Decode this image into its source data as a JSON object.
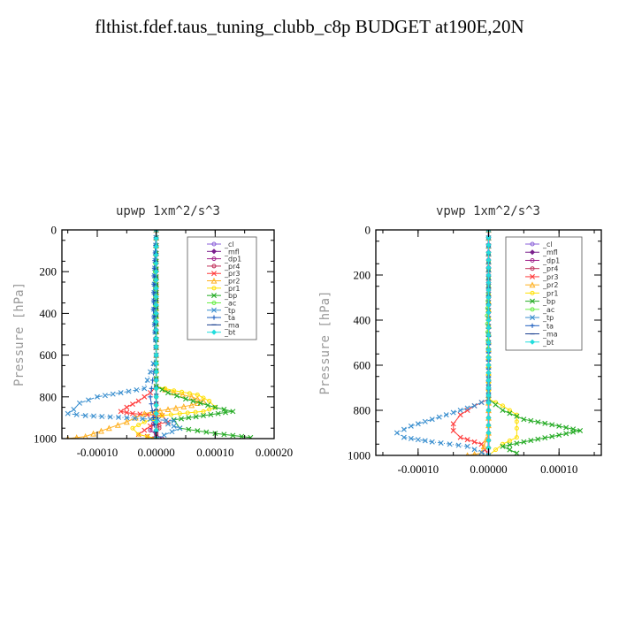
{
  "title": "flthist.fdef.taus_tuning_clubb_c8p  BUDGET at190E,20N",
  "legend": [
    {
      "name": "_cl",
      "color": "#8a5fd8",
      "marker": "circle"
    },
    {
      "name": "_mfl",
      "color": "#7a1f8c",
      "marker": "diamond"
    },
    {
      "name": "_dp1",
      "color": "#a0208a",
      "marker": "circle"
    },
    {
      "name": "_pr4",
      "color": "#c0305a",
      "marker": "circle"
    },
    {
      "name": "_pr3",
      "color": "#ff3b3b",
      "marker": "x"
    },
    {
      "name": "_pr2",
      "color": "#ffb020",
      "marker": "triangle"
    },
    {
      "name": "_pr1",
      "color": "#ffe000",
      "marker": "circle"
    },
    {
      "name": "_bp",
      "color": "#22aa22",
      "marker": "x"
    },
    {
      "name": "_ac",
      "color": "#66ee44",
      "marker": "circle"
    },
    {
      "name": "_tp",
      "color": "#3a8fcf",
      "marker": "x"
    },
    {
      "name": "_ta",
      "color": "#2060c0",
      "marker": "plus"
    },
    {
      "name": "_ma",
      "color": "#1a3f8f",
      "marker": "dash"
    },
    {
      "name": "_bt",
      "color": "#22dddd",
      "marker": "diamond"
    }
  ],
  "chart_data": [
    {
      "type": "line",
      "title": "upwp  1xm^2/s^3",
      "xlabel": "",
      "ylabel": "Pressure [hPa]",
      "xlim": [
        -0.00016,
        0.0002
      ],
      "ylim": [
        1000,
        0
      ],
      "xticks": [
        -0.0001,
        0.0,
        0.0001,
        0.0002
      ],
      "xticklabels": [
        "-0.00010",
        "0.00000",
        "0.00010",
        "0.00020"
      ],
      "yticks": [
        0,
        200,
        400,
        600,
        800,
        1000
      ],
      "yticklabels": [
        "0",
        "200",
        "400",
        "600",
        "800",
        "1000"
      ],
      "legend_position": "top-right",
      "series": [
        {
          "name": "_cl",
          "points": [
            [
              0,
              0
            ],
            [
              0,
              200
            ],
            [
              0,
              400
            ],
            [
              0,
              600
            ],
            [
              0,
              800
            ],
            [
              0,
              1000
            ]
          ]
        },
        {
          "name": "_mfl",
          "points": [
            [
              0,
              0
            ],
            [
              0,
              200
            ],
            [
              0,
              400
            ],
            [
              0,
              600
            ],
            [
              0,
              800
            ],
            [
              0,
              1000
            ]
          ]
        },
        {
          "name": "_dp1",
          "points": [
            [
              0,
              0
            ],
            [
              0,
              200
            ],
            [
              0,
              400
            ],
            [
              0,
              600
            ],
            [
              0,
              800
            ],
            [
              0,
              900
            ],
            [
              -1e-05,
              960
            ],
            [
              1e-05,
              1000
            ]
          ]
        },
        {
          "name": "_pr4",
          "points": [
            [
              0,
              0
            ],
            [
              0,
              600
            ],
            [
              0,
              800
            ],
            [
              0,
              900
            ],
            [
              5e-06,
              950
            ],
            [
              -5e-06,
              1000
            ]
          ]
        },
        {
          "name": "_pr3",
          "points": [
            [
              0,
              0
            ],
            [
              0,
              750
            ],
            [
              -1e-05,
              780
            ],
            [
              -3e-05,
              820
            ],
            [
              -5e-05,
              850
            ],
            [
              -6e-05,
              870
            ],
            [
              -4e-05,
              880
            ],
            [
              1e-05,
              890
            ],
            [
              2e-05,
              920
            ],
            [
              -1e-05,
              940
            ],
            [
              -3e-05,
              980
            ],
            [
              0,
              1000
            ]
          ]
        },
        {
          "name": "_pr2",
          "points": [
            [
              0,
              0
            ],
            [
              0,
              750
            ],
            [
              3e-05,
              780
            ],
            [
              6e-05,
              800
            ],
            [
              8e-05,
              820
            ],
            [
              6e-05,
              840
            ],
            [
              2e-05,
              860
            ],
            [
              -2e-05,
              880
            ],
            [
              -5e-05,
              920
            ],
            [
              -8e-05,
              950
            ],
            [
              -0.00012,
              990
            ],
            [
              -0.00015,
              1000
            ]
          ]
        },
        {
          "name": "_pr1",
          "points": [
            [
              0,
              0
            ],
            [
              0,
              750
            ],
            [
              3e-05,
              770
            ],
            [
              7e-05,
              790
            ],
            [
              9e-05,
              820
            ],
            [
              0.0001,
              850
            ],
            [
              8e-05,
              870
            ],
            [
              4e-05,
              880
            ],
            [
              1e-05,
              890
            ],
            [
              -2e-05,
              920
            ],
            [
              -4e-05,
              950
            ],
            [
              -3e-05,
              980
            ],
            [
              0,
              1000
            ]
          ]
        },
        {
          "name": "_bp",
          "points": [
            [
              0,
              0
            ],
            [
              0,
              750
            ],
            [
              2e-05,
              780
            ],
            [
              5e-05,
              810
            ],
            [
              0.0001,
              850
            ],
            [
              0.00013,
              870
            ],
            [
              8e-05,
              890
            ],
            [
              3e-05,
              910
            ],
            [
              4e-05,
              950
            ],
            [
              0.0001,
              975
            ],
            [
              0.00016,
              995
            ]
          ]
        },
        {
          "name": "_ac",
          "points": [
            [
              0,
              0
            ],
            [
              -2e-06,
              200
            ],
            [
              -2e-06,
              400
            ],
            [
              0,
              600
            ],
            [
              0,
              800
            ],
            [
              0,
              1000
            ]
          ]
        },
        {
          "name": "_tp",
          "points": [
            [
              0,
              0
            ],
            [
              -3e-06,
              220
            ],
            [
              -4e-06,
              380
            ],
            [
              0,
              600
            ],
            [
              -2e-05,
              760
            ],
            [
              -6e-05,
              780
            ],
            [
              -0.0001,
              800
            ],
            [
              -0.00013,
              830
            ],
            [
              -0.00014,
              860
            ],
            [
              -0.00015,
              880
            ],
            [
              -0.00012,
              890
            ],
            [
              -5e-05,
              900
            ],
            [
              3e-05,
              915
            ],
            [
              2e-05,
              930
            ],
            [
              4e-05,
              950
            ],
            [
              0,
              1000
            ]
          ]
        },
        {
          "name": "_ta",
          "points": [
            [
              0,
              0
            ],
            [
              -4e-06,
              220
            ],
            [
              -5e-06,
              380
            ],
            [
              0,
              600
            ],
            [
              -1e-05,
              800
            ],
            [
              -5e-06,
              900
            ],
            [
              0,
              1000
            ]
          ]
        },
        {
          "name": "_ma",
          "points": [
            [
              0,
              0
            ],
            [
              0,
              300
            ],
            [
              0,
              600
            ],
            [
              0,
              900
            ],
            [
              0,
              1000
            ]
          ]
        },
        {
          "name": "_bt",
          "points": [
            [
              0,
              0
            ],
            [
              0,
              200
            ],
            [
              0,
              400
            ],
            [
              0,
              600
            ],
            [
              0,
              800
            ],
            [
              0,
              1000
            ]
          ]
        }
      ]
    },
    {
      "type": "line",
      "title": "vpwp  1xm^2/s^3",
      "xlabel": "",
      "ylabel": "Pressure [hPa]",
      "xlim": [
        -0.00016,
        0.00016
      ],
      "ylim": [
        1000,
        0
      ],
      "xticks": [
        -0.0001,
        0.0,
        0.0001
      ],
      "xticklabels": [
        "-0.00010",
        "0.00000",
        "0.00010"
      ],
      "yticks": [
        0,
        200,
        400,
        600,
        800,
        1000
      ],
      "yticklabels": [
        "0",
        "200",
        "400",
        "600",
        "800",
        "1000"
      ],
      "legend_position": "top-right",
      "series": [
        {
          "name": "_cl",
          "points": [
            [
              0,
              0
            ],
            [
              0,
              200
            ],
            [
              0,
              400
            ],
            [
              0,
              600
            ],
            [
              0,
              800
            ],
            [
              0,
              1000
            ]
          ]
        },
        {
          "name": "_mfl",
          "points": [
            [
              0,
              0
            ],
            [
              0,
              200
            ],
            [
              0,
              400
            ],
            [
              0,
              600
            ],
            [
              0,
              800
            ],
            [
              0,
              1000
            ]
          ]
        },
        {
          "name": "_dp1",
          "points": [
            [
              0,
              0
            ],
            [
              0,
              200
            ],
            [
              0,
              400
            ],
            [
              0,
              600
            ],
            [
              0,
              800
            ],
            [
              0,
              1000
            ]
          ]
        },
        {
          "name": "_pr4",
          "points": [
            [
              0,
              0
            ],
            [
              0,
              600
            ],
            [
              0,
              900
            ],
            [
              0,
              1000
            ]
          ]
        },
        {
          "name": "_pr3",
          "points": [
            [
              0,
              0
            ],
            [
              0,
              750
            ],
            [
              -2e-05,
              780
            ],
            [
              -4e-05,
              820
            ],
            [
              -5e-05,
              860
            ],
            [
              -5e-05,
              890
            ],
            [
              -4e-05,
              920
            ],
            [
              -1e-05,
              950
            ],
            [
              0,
              1000
            ]
          ]
        },
        {
          "name": "_pr2",
          "points": [
            [
              0,
              0
            ],
            [
              0,
              600
            ],
            [
              0,
              800
            ],
            [
              0,
              900
            ],
            [
              -1e-05,
              990
            ],
            [
              -3e-05,
              1000
            ]
          ]
        },
        {
          "name": "_pr1",
          "points": [
            [
              0,
              0
            ],
            [
              0,
              750
            ],
            [
              2e-05,
              780
            ],
            [
              4e-05,
              820
            ],
            [
              4e-05,
              880
            ],
            [
              4e-05,
              920
            ],
            [
              2e-05,
              950
            ],
            [
              0,
              1000
            ]
          ]
        },
        {
          "name": "_bp",
          "points": [
            [
              0,
              0
            ],
            [
              0,
              750
            ],
            [
              2e-05,
              800
            ],
            [
              5e-05,
              840
            ],
            [
              0.0001,
              870
            ],
            [
              0.00013,
              890
            ],
            [
              0.0001,
              910
            ],
            [
              5e-05,
              940
            ],
            [
              2e-05,
              960
            ],
            [
              4e-05,
              990
            ]
          ]
        },
        {
          "name": "_ac",
          "points": [
            [
              0,
              0
            ],
            [
              0,
              250
            ],
            [
              -2e-06,
              380
            ],
            [
              0,
              600
            ],
            [
              0,
              800
            ],
            [
              0,
              1000
            ]
          ]
        },
        {
          "name": "_tp",
          "points": [
            [
              0,
              0
            ],
            [
              0,
              750
            ],
            [
              -2e-05,
              780
            ],
            [
              -5e-05,
              810
            ],
            [
              -8e-05,
              840
            ],
            [
              -0.00011,
              870
            ],
            [
              -0.00013,
              900
            ],
            [
              -0.00012,
              920
            ],
            [
              -8e-05,
              940
            ],
            [
              -3e-05,
              960
            ],
            [
              0,
              1000
            ]
          ]
        },
        {
          "name": "_ta",
          "points": [
            [
              0,
              0
            ],
            [
              0,
              400
            ],
            [
              0,
              800
            ],
            [
              0,
              1000
            ]
          ]
        },
        {
          "name": "_ma",
          "points": [
            [
              0,
              0
            ],
            [
              0,
              300
            ],
            [
              0,
              600
            ],
            [
              0,
              900
            ],
            [
              0,
              1000
            ]
          ]
        },
        {
          "name": "_bt",
          "points": [
            [
              0,
              0
            ],
            [
              0,
              200
            ],
            [
              0,
              400
            ],
            [
              0,
              600
            ],
            [
              0,
              800
            ],
            [
              0,
              1000
            ]
          ]
        }
      ]
    }
  ]
}
